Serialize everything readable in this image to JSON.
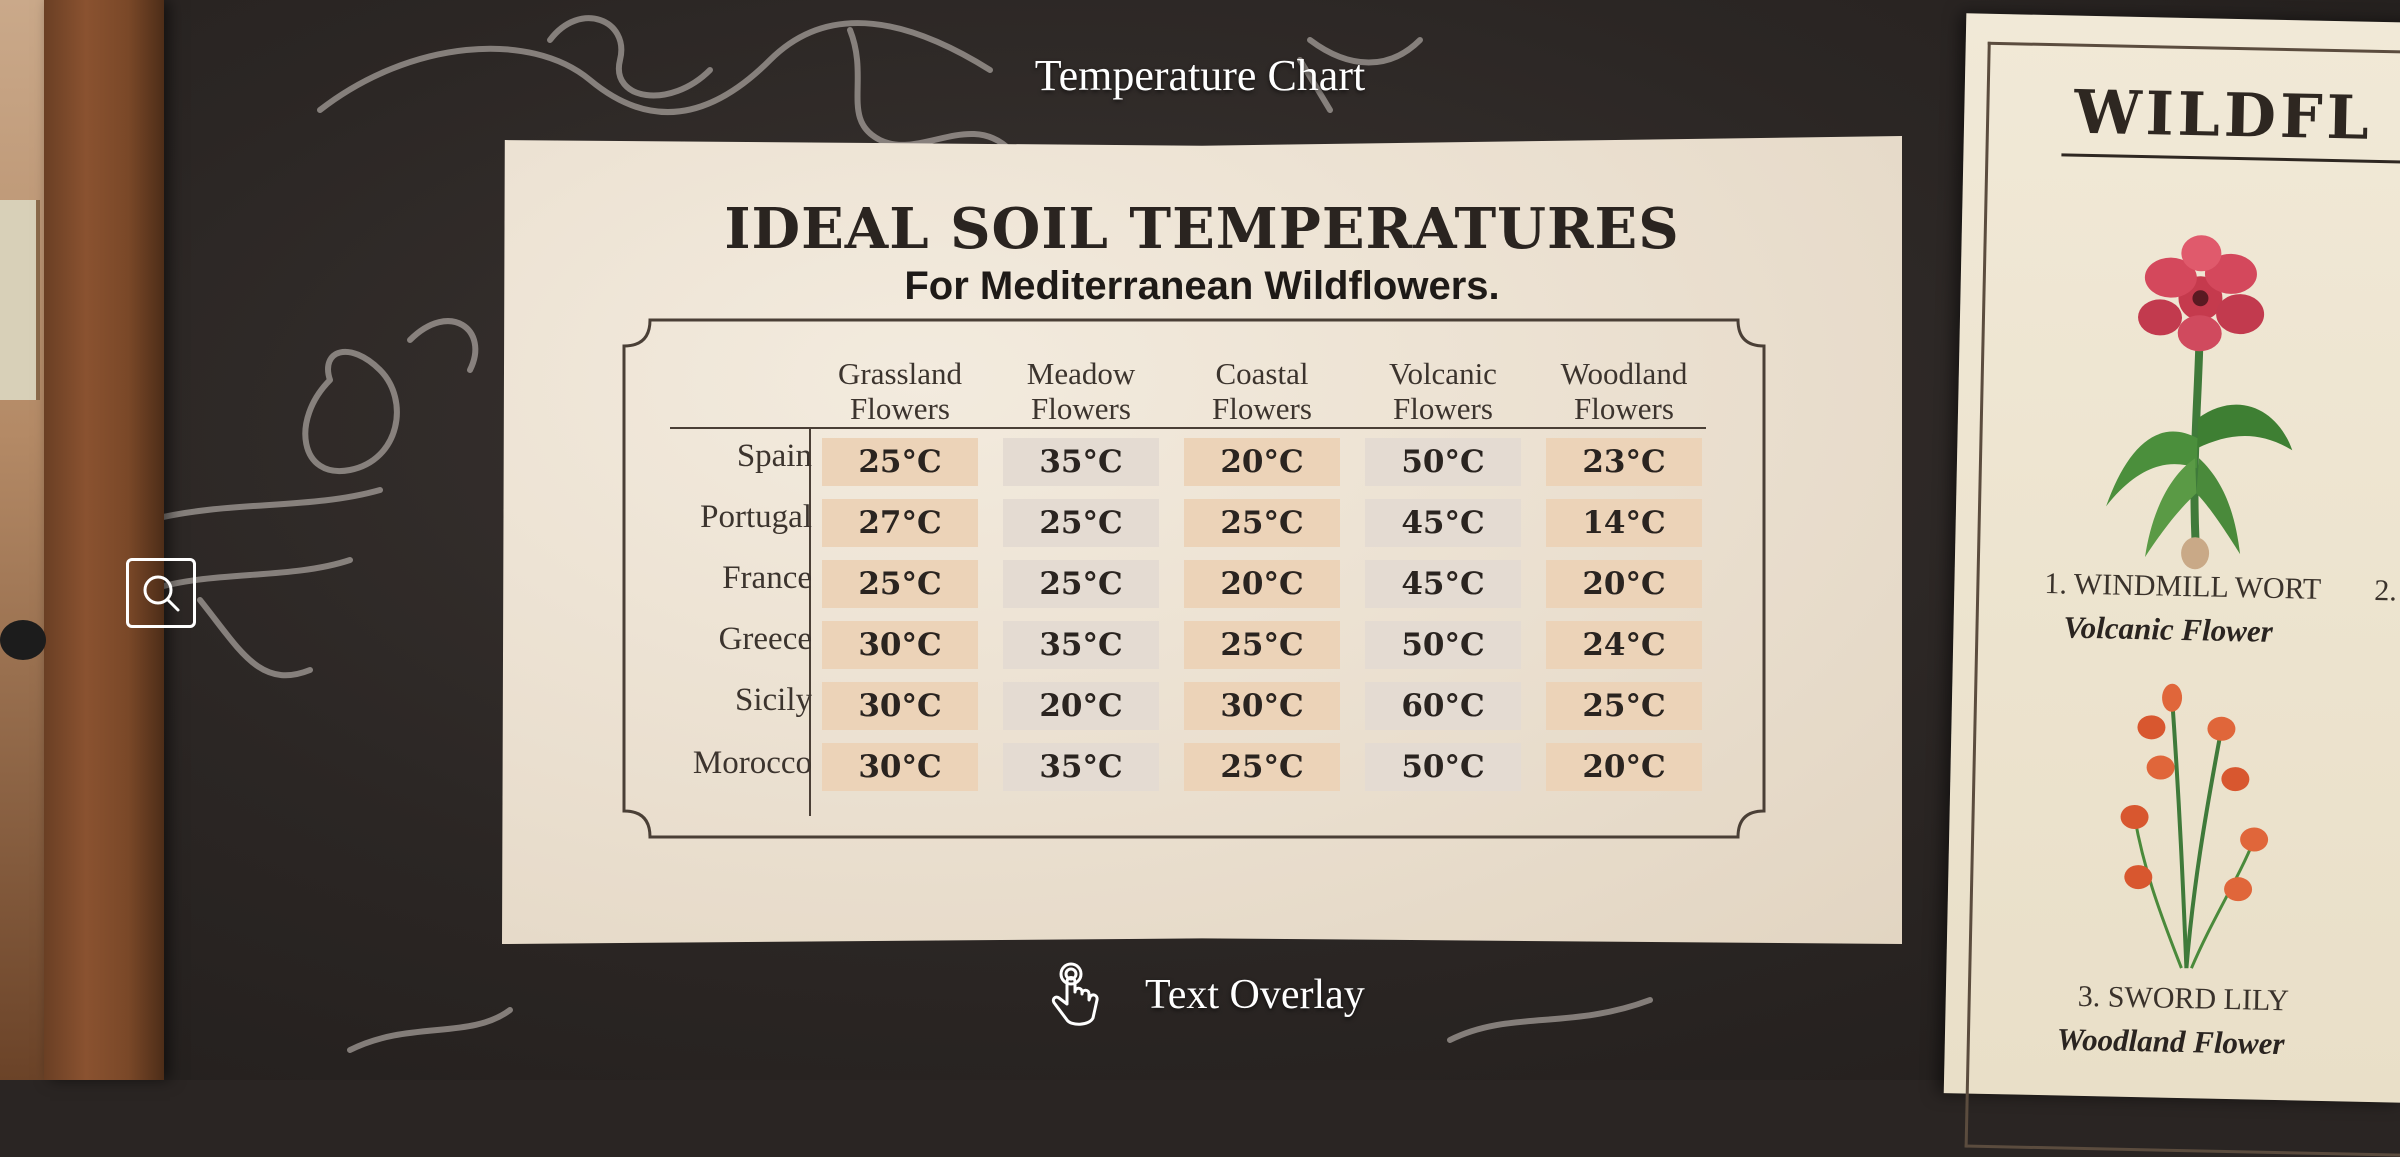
{
  "header": {
    "title": "Temperature Chart"
  },
  "chart": {
    "title": "IDEAL SOIL TEMPERATURES",
    "subtitle": "For Mediterranean Wildflowers.",
    "columns": [
      {
        "line1": "Grassland",
        "line2": "Flowers"
      },
      {
        "line1": "Meadow",
        "line2": "Flowers"
      },
      {
        "line1": "Coastal",
        "line2": "Flowers"
      },
      {
        "line1": "Volcanic",
        "line2": "Flowers"
      },
      {
        "line1": "Woodland",
        "line2": "Flowers"
      }
    ],
    "rows": [
      {
        "region": "Spain",
        "cells": [
          "25°C",
          "35°C",
          "20°C",
          "50°C",
          "23°C"
        ]
      },
      {
        "region": "Portugal",
        "cells": [
          "27°C",
          "25°C",
          "25°C",
          "45°C",
          "14°C"
        ]
      },
      {
        "region": "France",
        "cells": [
          "25°C",
          "25°C",
          "20°C",
          "45°C",
          "20°C"
        ]
      },
      {
        "region": "Greece",
        "cells": [
          "30°C",
          "35°C",
          "25°C",
          "50°C",
          "24°C"
        ]
      },
      {
        "region": "Sicily",
        "cells": [
          "30°C",
          "20°C",
          "30°C",
          "60°C",
          "25°C"
        ]
      },
      {
        "region": "Morocco",
        "cells": [
          "30°C",
          "35°C",
          "25°C",
          "50°C",
          "20°C"
        ]
      }
    ]
  },
  "poster": {
    "title": "WILDFL",
    "flowers": [
      {
        "name": "1. WINDMILL WORT",
        "type": "Volcanic Flower"
      },
      {
        "name": "3. SWORD LILY",
        "type": "Woodland Flower"
      }
    ],
    "partial_label": "2."
  },
  "hint": {
    "text": "Text Overlay",
    "icon": "tap-hand-icon"
  },
  "controls": {
    "close_icon": "close-icon",
    "search_icon": "magnifier-icon"
  }
}
